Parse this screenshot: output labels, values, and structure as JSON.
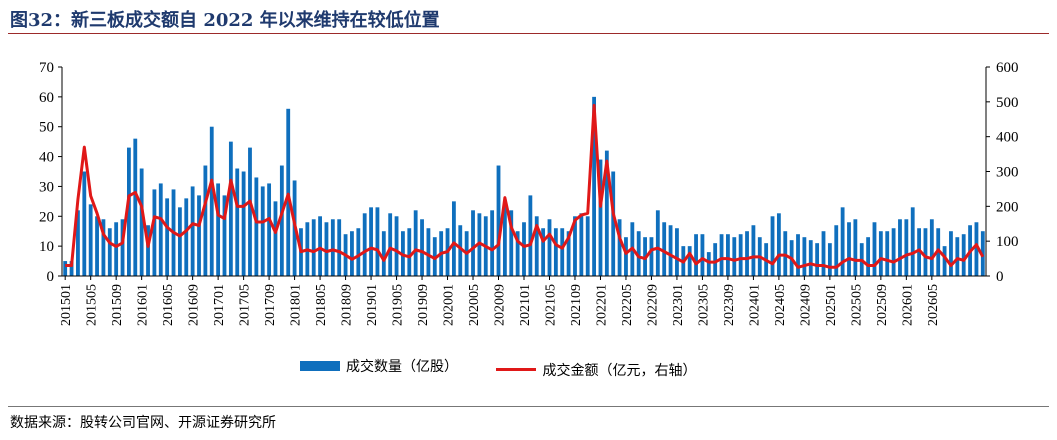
{
  "header": {
    "title": "图32：新三板成交额自 2022 年以来维持在较低位置"
  },
  "footer": {
    "source": "数据来源：股转公司官网、开源证券研究所"
  },
  "colors": {
    "bar": "#0f6fbd",
    "line": "#e01818",
    "title": "#1f3a6e"
  },
  "chart_data": {
    "type": "bar",
    "title": "",
    "xlabel": "",
    "ylabel_left": "",
    "ylabel_right": "",
    "ylim_left": [
      0,
      70
    ],
    "ylim_right": [
      0,
      600
    ],
    "yticks_left": [
      0,
      10,
      20,
      30,
      40,
      50,
      60,
      70
    ],
    "yticks_right": [
      0,
      100,
      200,
      300,
      400,
      500,
      600
    ],
    "grid": false,
    "legend_position": "bottom",
    "start_month": "201501",
    "xtick_labels": [
      "201501",
      "201505",
      "201509",
      "201601",
      "201605",
      "201609",
      "201701",
      "201705",
      "201709",
      "201801",
      "201805",
      "201809",
      "201901",
      "201905",
      "201909",
      "202001",
      "202005",
      "202009",
      "202101",
      "202105",
      "202109",
      "202201",
      "202205",
      "202209",
      "202301",
      "202305",
      "202309",
      "202401",
      "202405",
      "202409",
      "202501",
      "202505",
      "202509",
      "202601",
      "202605"
    ],
    "series": [
      {
        "name": "成交数量（亿股）",
        "type": "bar",
        "axis": "left",
        "values": [
          5,
          5,
          22,
          35,
          24,
          20,
          19,
          16,
          18,
          19,
          43,
          46,
          36,
          17,
          29,
          31,
          26,
          29,
          23,
          26,
          30,
          27,
          37,
          50,
          31,
          27,
          45,
          36,
          35,
          43,
          33,
          30,
          31,
          25,
          37,
          56,
          32,
          16,
          18,
          19,
          20,
          18,
          19,
          19,
          14,
          15,
          16,
          21,
          23,
          23,
          15,
          21,
          20,
          15,
          16,
          22,
          19,
          16,
          13,
          15,
          16,
          25,
          17,
          15,
          22,
          21,
          20,
          22,
          37,
          24,
          22,
          15,
          18,
          27,
          20,
          16,
          19,
          16,
          16,
          15,
          20,
          21,
          20,
          60,
          39,
          42,
          35,
          19,
          13,
          18,
          15,
          13,
          13,
          22,
          18,
          17,
          16,
          10,
          10,
          14,
          14,
          8,
          11,
          14,
          14,
          13,
          14,
          15,
          17,
          13,
          11,
          20,
          21,
          15,
          12,
          14,
          13,
          12,
          11,
          15,
          11,
          17,
          23,
          18,
          19,
          11,
          13,
          18,
          15,
          15,
          16,
          19,
          19,
          23,
          16,
          16,
          19,
          16,
          10,
          15,
          13,
          14,
          17,
          18,
          15
        ]
      },
      {
        "name": "成交金额（亿元，右轴）",
        "type": "line",
        "axis": "right",
        "values": [
          30,
          30,
          220,
          370,
          230,
          180,
          120,
          95,
          85,
          95,
          230,
          240,
          200,
          85,
          170,
          165,
          140,
          125,
          115,
          130,
          150,
          145,
          210,
          275,
          175,
          165,
          275,
          200,
          200,
          215,
          155,
          155,
          165,
          125,
          180,
          235,
          150,
          70,
          75,
          70,
          80,
          70,
          75,
          70,
          60,
          48,
          58,
          70,
          80,
          75,
          45,
          80,
          72,
          60,
          55,
          75,
          70,
          60,
          50,
          65,
          70,
          95,
          80,
          65,
          80,
          95,
          85,
          75,
          90,
          225,
          140,
          100,
          85,
          90,
          145,
          100,
          120,
          90,
          80,
          110,
          160,
          175,
          180,
          490,
          200,
          330,
          180,
          110,
          65,
          80,
          55,
          50,
          75,
          80,
          70,
          60,
          50,
          40,
          65,
          35,
          50,
          40,
          40,
          50,
          50,
          45,
          50,
          50,
          55,
          55,
          45,
          35,
          60,
          60,
          50,
          25,
          30,
          35,
          30,
          30,
          25,
          25,
          40,
          50,
          45,
          45,
          30,
          30,
          50,
          45,
          40,
          50,
          60,
          65,
          75,
          55,
          50,
          75,
          55,
          30,
          50,
          45,
          70,
          90,
          55
        ]
      }
    ]
  }
}
